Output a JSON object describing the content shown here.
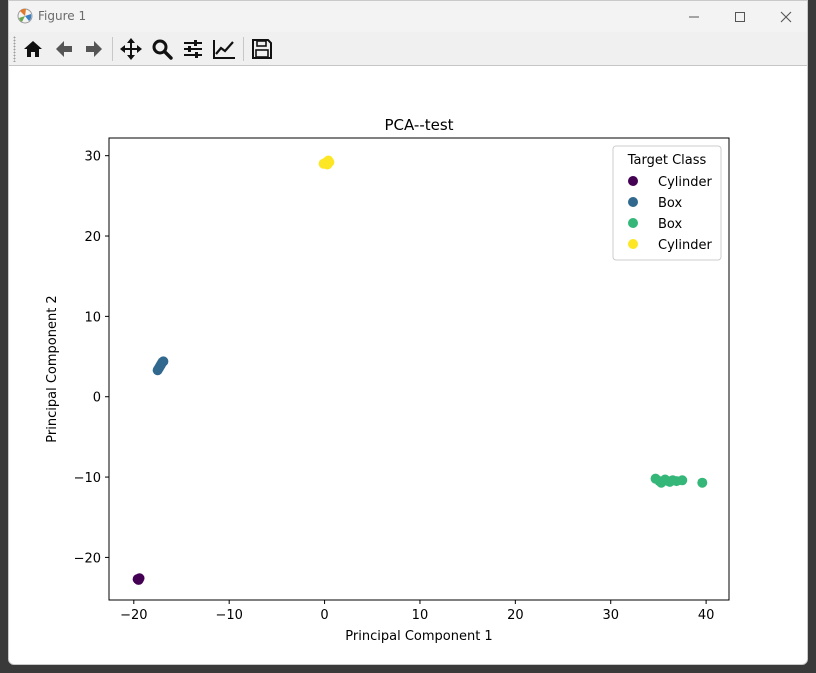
{
  "window": {
    "title": "Figure 1"
  },
  "toolbar": {
    "buttons": [
      {
        "name": "home-button",
        "icon": "home-icon"
      },
      {
        "name": "back-button",
        "icon": "arrow-left-icon"
      },
      {
        "name": "forward-button",
        "icon": "arrow-right-icon"
      },
      {
        "name": "pan-button",
        "icon": "move-icon"
      },
      {
        "name": "zoom-button",
        "icon": "magnifier-icon"
      },
      {
        "name": "configure-subplots-button",
        "icon": "sliders-icon"
      },
      {
        "name": "edit-axis-button",
        "icon": "line-chart-icon"
      },
      {
        "name": "save-button",
        "icon": "floppy-disk-icon"
      }
    ]
  },
  "chart_data": {
    "type": "scatter",
    "title": "PCA--test",
    "xlabel": "Principal Component 1",
    "ylabel": "Principal Component 2",
    "xlim": [
      -22.6,
      42.4
    ],
    "ylim": [
      -25.3,
      32.2
    ],
    "xticks": [
      -20,
      -10,
      0,
      10,
      20,
      30,
      40
    ],
    "yticks": [
      -20,
      -10,
      0,
      10,
      20,
      30
    ],
    "grid": false,
    "legend": {
      "title": "Target Class",
      "placement": "upper right"
    },
    "series": [
      {
        "name": "Cylinder",
        "color": "#440154",
        "points": [
          [
            -19.6,
            -22.7
          ],
          [
            -19.4,
            -22.6
          ],
          [
            -19.5,
            -22.8
          ]
        ]
      },
      {
        "name": "Box",
        "color": "#31688e",
        "points": [
          [
            -17.5,
            3.3
          ],
          [
            -17.3,
            3.7
          ],
          [
            -17.1,
            4.1
          ],
          [
            -16.9,
            4.4
          ],
          [
            -17.2,
            3.9
          ],
          [
            -17.4,
            3.5
          ],
          [
            -17.0,
            4.3
          ]
        ]
      },
      {
        "name": "Box",
        "color": "#35b779",
        "points": [
          [
            34.7,
            -10.2
          ],
          [
            35.3,
            -10.7
          ],
          [
            35.7,
            -10.3
          ],
          [
            36.2,
            -10.6
          ],
          [
            36.5,
            -10.4
          ],
          [
            36.9,
            -10.5
          ],
          [
            37.5,
            -10.4
          ],
          [
            39.6,
            -10.7
          ],
          [
            35.1,
            -10.5
          ],
          [
            36.0,
            -10.5
          ]
        ]
      },
      {
        "name": "Cylinder",
        "color": "#fde725",
        "points": [
          [
            -0.1,
            29.0
          ],
          [
            0.2,
            29.2
          ],
          [
            0.4,
            29.4
          ],
          [
            0.1,
            29.1
          ],
          [
            0.5,
            29.2
          ],
          [
            0.3,
            28.9
          ]
        ]
      }
    ]
  }
}
